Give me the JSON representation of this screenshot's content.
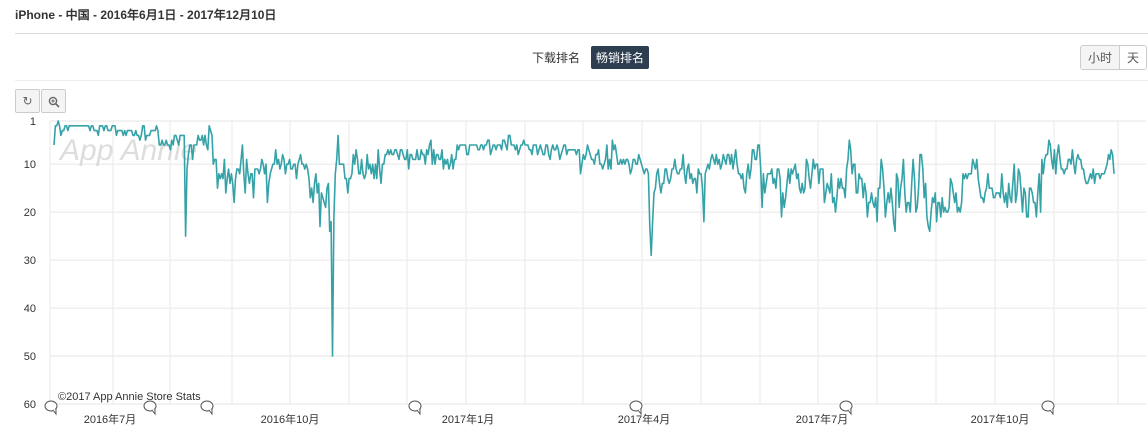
{
  "header": {
    "title": "iPhone - 中国 - 2016年6月1日 - 2017年12月10日"
  },
  "tabs": [
    {
      "label": "下载排名",
      "active": false
    },
    {
      "label": "畅销排名",
      "active": true
    }
  ],
  "granularity": [
    {
      "label": "小时",
      "active": false
    },
    {
      "label": "天",
      "active": true
    }
  ],
  "toolbar": {
    "reset_icon": "reset-zoom-icon",
    "zoom_icon": "zoom-in-icon"
  },
  "watermark": "App Annie",
  "credit": "©2017 App Annie Store Stats",
  "chart_data": {
    "type": "line",
    "x_label_ticks": [
      "2016年7月",
      "2016年10月",
      "2017年1月",
      "2017年4月",
      "2017年7月",
      "2017年10月"
    ],
    "y_ticks": [
      1,
      10,
      20,
      30,
      40,
      50,
      60
    ],
    "ylim": [
      60,
      1
    ],
    "y_inverted": true,
    "grid": true,
    "line_color": "#35a2a8",
    "series": [
      {
        "x_start": "2016-06-01",
        "x_end": "2017-12-10",
        "values": [
          6,
          2,
          2,
          1,
          2,
          4,
          3,
          3,
          2,
          2,
          3,
          2,
          2,
          2,
          2,
          2,
          2,
          2,
          2,
          2,
          2,
          2,
          2,
          2,
          2,
          2,
          3,
          2,
          2,
          3,
          3,
          3,
          4,
          2,
          2,
          2,
          3,
          2,
          2,
          3,
          3,
          3,
          2,
          2,
          2,
          4,
          3,
          3,
          3,
          3,
          4,
          3,
          4,
          3,
          3,
          3,
          3,
          4,
          4,
          3,
          4,
          4,
          5,
          4,
          2,
          2,
          5,
          4,
          4,
          4,
          3,
          3,
          3,
          3,
          2,
          3,
          6,
          6,
          5,
          6,
          6,
          5,
          6,
          6,
          7,
          5,
          6,
          4,
          4,
          5,
          6,
          4,
          4,
          4,
          4,
          25,
          11,
          8,
          6,
          6,
          9,
          6,
          6,
          6,
          4,
          5,
          5,
          4,
          6,
          4,
          6,
          7,
          2,
          3,
          4,
          10,
          9,
          9,
          15,
          12,
          13,
          12,
          13,
          9,
          16,
          13,
          11,
          14,
          12,
          14,
          18,
          13,
          11,
          11,
          12,
          9,
          6,
          12,
          16,
          9,
          12,
          14,
          12,
          12,
          17,
          11,
          11,
          11,
          12,
          11,
          9,
          10,
          12,
          10,
          18,
          14,
          12,
          11,
          10,
          10,
          7,
          10,
          9,
          11,
          10,
          8,
          9,
          12,
          10,
          10,
          9,
          11,
          11,
          10,
          10,
          13,
          10,
          9,
          8,
          10,
          10,
          11,
          10,
          11,
          13,
          17,
          15,
          18,
          14,
          12,
          16,
          14,
          23,
          16,
          17,
          18,
          19,
          15,
          14,
          24,
          22,
          50,
          21,
          12,
          9,
          4,
          10,
          10,
          10,
          10,
          13,
          13,
          16,
          13,
          13,
          12,
          8,
          10,
          7,
          9,
          12,
          12,
          9,
          12,
          13,
          12,
          8,
          11,
          10,
          12,
          10,
          13,
          10,
          13,
          7,
          11,
          14,
          10,
          10,
          8,
          8,
          7,
          8,
          7,
          8,
          8,
          7,
          7,
          8,
          9,
          7,
          7,
          8,
          9,
          9,
          7,
          11,
          8,
          8,
          9,
          9,
          9,
          7,
          9,
          9,
          7,
          8,
          8,
          10,
          7,
          8,
          6,
          5,
          10,
          7,
          10,
          8,
          8,
          9,
          9,
          7,
          11,
          9,
          10,
          9,
          11,
          10,
          8,
          11,
          9,
          9,
          6,
          7,
          6,
          6,
          6,
          6,
          6,
          8,
          8,
          6,
          6,
          6,
          6,
          6,
          6,
          7,
          7,
          6,
          6,
          7,
          6,
          6,
          5,
          5,
          8,
          7,
          6,
          6,
          7,
          6,
          6,
          6,
          7,
          5,
          5,
          6,
          7,
          4,
          4,
          6,
          6,
          6,
          7,
          6,
          8,
          7,
          6,
          6,
          5,
          6,
          6,
          6,
          7,
          7,
          8,
          6,
          6,
          6,
          8,
          7,
          6,
          7,
          8,
          8,
          6,
          6,
          8,
          9,
          7,
          6,
          7,
          7,
          6,
          7,
          9,
          8,
          7,
          6,
          6,
          8,
          7,
          7,
          7,
          7,
          7,
          7,
          8,
          7,
          7,
          12,
          10,
          8,
          9,
          8,
          6,
          7,
          8,
          9,
          9,
          10,
          8,
          8,
          7,
          10,
          10,
          11,
          10,
          9,
          6,
          11,
          9,
          11,
          5,
          7,
          6,
          8,
          10,
          10,
          9,
          10,
          9,
          10,
          9,
          9,
          10,
          12,
          11,
          9,
          9,
          10,
          10,
          8,
          9,
          10,
          11,
          12,
          11,
          11,
          12,
          23,
          29,
          22,
          16,
          15,
          12,
          11,
          14,
          16,
          14,
          14,
          11,
          11,
          13,
          14,
          13,
          11,
          11,
          9,
          11,
          12,
          12,
          11,
          11,
          8,
          12,
          14,
          11,
          10,
          13,
          12,
          14,
          13,
          13,
          16,
          11,
          12,
          12,
          15,
          22,
          12,
          11,
          10,
          11,
          9,
          8,
          9,
          10,
          8,
          10,
          9,
          11,
          10,
          8,
          9,
          10,
          8,
          8,
          10,
          8,
          11,
          9,
          7,
          10,
          12,
          12,
          13,
          12,
          15,
          16,
          12,
          10,
          13,
          11,
          7,
          7,
          9,
          9,
          6,
          6,
          11,
          19,
          12,
          16,
          14,
          12,
          12,
          12,
          11,
          14,
          13,
          15,
          11,
          11,
          13,
          21,
          16,
          19,
          17,
          14,
          11,
          14,
          11,
          12,
          11,
          10,
          13,
          12,
          15,
          16,
          14,
          16,
          15,
          9,
          10,
          13,
          15,
          12,
          9,
          11,
          10,
          10,
          14,
          11,
          11,
          11,
          18,
          16,
          14,
          15,
          16,
          12,
          18,
          17,
          20,
          17,
          13,
          15,
          13,
          15,
          15,
          17,
          11,
          9,
          5,
          7,
          12,
          10,
          10,
          16,
          16,
          12,
          13,
          13,
          17,
          14,
          16,
          21,
          18,
          18,
          16,
          18,
          19,
          17,
          22,
          15,
          15,
          9,
          11,
          15,
          21,
          18,
          16,
          18,
          15,
          18,
          22,
          24,
          12,
          13,
          19,
          15,
          13,
          9,
          16,
          20,
          18,
          18,
          20,
          14,
          9,
          13,
          20,
          19,
          15,
          8,
          8,
          11,
          17,
          14,
          21,
          23,
          24,
          20,
          17,
          18,
          16,
          22,
          18,
          18,
          21,
          17,
          20,
          19,
          20,
          20,
          19,
          13,
          14,
          16,
          18,
          16,
          20,
          19,
          20,
          18,
          12,
          13,
          12,
          13,
          12,
          12,
          12,
          9,
          10,
          11,
          9,
          13,
          15,
          17,
          17,
          18,
          16,
          15,
          12,
          15,
          15,
          15,
          17,
          17,
          16,
          16,
          16,
          17,
          12,
          16,
          18,
          16,
          19,
          14,
          17,
          18,
          14,
          10,
          18,
          16,
          11,
          12,
          16,
          20,
          15,
          16,
          21,
          21,
          15,
          15,
          16,
          18,
          18,
          21,
          16,
          12,
          20,
          9,
          12,
          9,
          8,
          8,
          5,
          6,
          9,
          11,
          7,
          12,
          8,
          6,
          9,
          11,
          11,
          12,
          11,
          11,
          9,
          9,
          10,
          7,
          10,
          12,
          9,
          8,
          9,
          9,
          11,
          11,
          13,
          14,
          14,
          13,
          12,
          13,
          11,
          14,
          12,
          12,
          12,
          13,
          12,
          12,
          12,
          11,
          10,
          8,
          9,
          7,
          8,
          12
        ]
      }
    ]
  }
}
